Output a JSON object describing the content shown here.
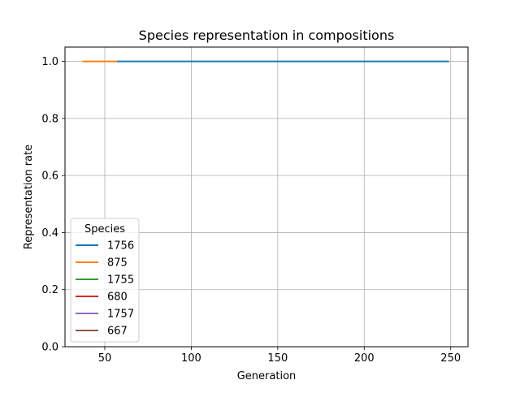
{
  "chart_data": {
    "type": "line",
    "title": "Species representation in compositions",
    "xlabel": "Generation",
    "ylabel": "Representation rate",
    "xlim": [
      27,
      260
    ],
    "ylim": [
      0,
      1.05
    ],
    "xticks": [
      50,
      100,
      150,
      200,
      250
    ],
    "yticks": [
      0.0,
      0.2,
      0.4,
      0.6,
      0.8,
      1.0
    ],
    "xtick_labels": [
      "50",
      "100",
      "150",
      "200",
      "250"
    ],
    "ytick_labels": [
      "0.0",
      "0.2",
      "0.4",
      "0.6",
      "0.8",
      "1.0"
    ],
    "grid": true,
    "legend": {
      "title": "Species",
      "placement": "lower-left"
    },
    "series": [
      {
        "name": "1756",
        "color": "#1f77b4",
        "x": [
          57,
          249
        ],
        "y": [
          1.0,
          1.0
        ]
      },
      {
        "name": "875",
        "color": "#ff7f0e",
        "x": [
          37,
          57
        ],
        "y": [
          1.0,
          1.0
        ]
      },
      {
        "name": "1755",
        "color": "#2ca02c",
        "x": [],
        "y": []
      },
      {
        "name": "680",
        "color": "#d62728",
        "x": [],
        "y": []
      },
      {
        "name": "1757",
        "color": "#9467bd",
        "x": [],
        "y": []
      },
      {
        "name": "667",
        "color": "#8c564b",
        "x": [],
        "y": []
      }
    ]
  }
}
